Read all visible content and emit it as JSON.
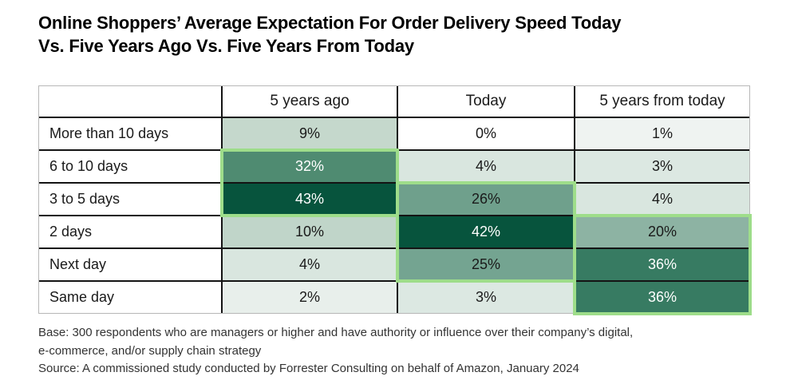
{
  "title_lines": [
    "Online Shoppers’ Average Expectation For Order Delivery Speed Today",
    "Vs. Five Years Ago Vs. Five Years From Today"
  ],
  "table": {
    "columns": [
      "",
      "5 years ago",
      "Today",
      "5 years from today"
    ],
    "rows": [
      {
        "label": "More than 10 days",
        "cells": [
          {
            "value": "9%",
            "bg": "#c5d8cc",
            "fg": "#1a1a1a"
          },
          {
            "value": "0%",
            "bg": "#ffffff",
            "fg": "#1a1a1a"
          },
          {
            "value": "1%",
            "bg": "#eff3f1",
            "fg": "#1a1a1a"
          }
        ]
      },
      {
        "label": "6 to 10 days",
        "cells": [
          {
            "value": "32%",
            "bg": "#4f8b71",
            "fg": "#ffffff"
          },
          {
            "value": "4%",
            "bg": "#d9e6df",
            "fg": "#1a1a1a"
          },
          {
            "value": "3%",
            "bg": "#dce8e2",
            "fg": "#1a1a1a"
          }
        ]
      },
      {
        "label": "3 to 5 days",
        "cells": [
          {
            "value": "43%",
            "bg": "#07543d",
            "fg": "#ffffff"
          },
          {
            "value": "26%",
            "bg": "#6fa08c",
            "fg": "#1a1a1a"
          },
          {
            "value": "4%",
            "bg": "#d9e6df",
            "fg": "#1a1a1a"
          }
        ]
      },
      {
        "label": "2 days",
        "cells": [
          {
            "value": "10%",
            "bg": "#c0d5c9",
            "fg": "#1a1a1a"
          },
          {
            "value": "42%",
            "bg": "#07543d",
            "fg": "#ffffff"
          },
          {
            "value": "20%",
            "bg": "#8db3a3",
            "fg": "#1a1a1a"
          }
        ]
      },
      {
        "label": "Next day",
        "cells": [
          {
            "value": "4%",
            "bg": "#d9e6df",
            "fg": "#1a1a1a"
          },
          {
            "value": "25%",
            "bg": "#74a491",
            "fg": "#1a1a1a"
          },
          {
            "value": "36%",
            "bg": "#377b62",
            "fg": "#ffffff"
          }
        ]
      },
      {
        "label": "Same day",
        "cells": [
          {
            "value": "2%",
            "bg": "#e8efeb",
            "fg": "#1a1a1a"
          },
          {
            "value": "3%",
            "bg": "#dce8e2",
            "fg": "#1a1a1a"
          },
          {
            "value": "36%",
            "bg": "#377b62",
            "fg": "#ffffff"
          }
        ]
      }
    ]
  },
  "highlights": [
    {
      "column_index": 1,
      "row_start": 1,
      "row_end": 2
    },
    {
      "column_index": 2,
      "row_start": 2,
      "row_end": 4
    },
    {
      "column_index": 3,
      "row_start": 3,
      "row_end": 5
    }
  ],
  "footnotes": {
    "base_lines": [
      "Base: 300 respondents who are managers or higher and have authority or influence over their company’s digital,",
      "e-commerce, and/or supply chain strategy"
    ],
    "source": "Source: A commissioned study conducted by Forrester Consulting on behalf of Amazon, January 2024"
  },
  "theme": {
    "grid_line": "#141414",
    "table_outer_border": "#b7b7b7",
    "highlight_border": "#9edd8a",
    "title_color": "#000000",
    "footnote_color": "#333333"
  },
  "chart_data": {
    "type": "heatmap",
    "title": "Online Shoppers’ Average Expectation For Order Delivery Speed Today Vs. Five Years Ago Vs. Five Years From Today",
    "columns": [
      "5 years ago",
      "Today",
      "5 years from today"
    ],
    "rows": [
      "More than 10 days",
      "6 to 10 days",
      "3 to 5 days",
      "2 days",
      "Next day",
      "Same day"
    ],
    "values": [
      [
        9,
        0,
        1
      ],
      [
        32,
        4,
        3
      ],
      [
        43,
        26,
        4
      ],
      [
        10,
        42,
        20
      ],
      [
        4,
        25,
        36
      ],
      [
        2,
        3,
        36
      ]
    ],
    "unit": "%",
    "color_scale": {
      "low_value_color": "#ffffff",
      "high_value_color": "#07543d"
    },
    "highlighted_blocks": [
      {
        "column": "5 years ago",
        "rows": [
          "6 to 10 days",
          "3 to 5 days"
        ]
      },
      {
        "column": "Today",
        "rows": [
          "3 to 5 days",
          "2 days",
          "Next day"
        ]
      },
      {
        "column": "5 years from today",
        "rows": [
          "2 days",
          "Next day",
          "Same day"
        ]
      }
    ],
    "highlight_border_color": "#9edd8a"
  }
}
